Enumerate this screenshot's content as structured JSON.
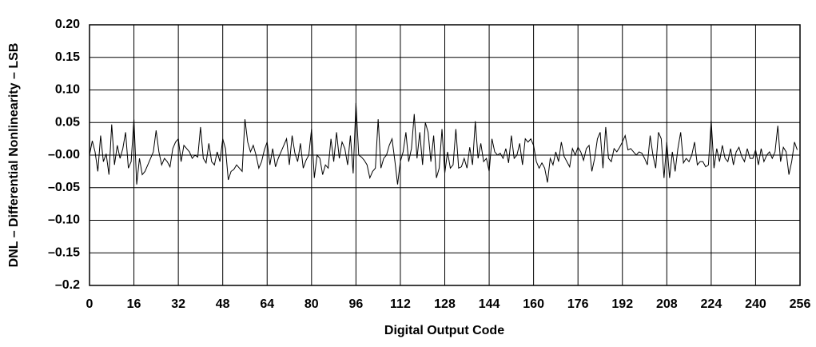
{
  "chart_data": {
    "type": "line",
    "x_label": "Digital Output Code",
    "y_label": "DNL – Differential Nonlinearity – LSB",
    "color": "#000000",
    "grid": true,
    "xlim": [
      0,
      256
    ],
    "xticks": [
      0,
      16,
      32,
      48,
      64,
      80,
      96,
      112,
      128,
      144,
      160,
      176,
      192,
      208,
      224,
      240,
      256
    ],
    "ylim": [
      -0.2,
      0.2
    ],
    "yticks": [
      {
        "value": 0.2,
        "label": "0.20"
      },
      {
        "value": 0.15,
        "label": "0.15"
      },
      {
        "value": 0.1,
        "label": "0.10"
      },
      {
        "value": 0.05,
        "label": "0.05"
      },
      {
        "value": 0,
        "label": "–0.00"
      },
      {
        "value": -0.05,
        "label": "–0.05"
      },
      {
        "value": -0.1,
        "label": "–0.10"
      },
      {
        "value": -0.15,
        "label": "–0.15"
      },
      {
        "value": -0.2,
        "label": "–0.2"
      }
    ],
    "x": [
      0,
      1,
      2,
      3,
      4,
      5,
      6,
      7,
      8,
      9,
      10,
      11,
      12,
      13,
      14,
      15,
      16,
      17,
      18,
      19,
      20,
      21,
      22,
      23,
      24,
      25,
      26,
      27,
      28,
      29,
      30,
      31,
      32,
      33,
      34,
      35,
      36,
      37,
      38,
      39,
      40,
      41,
      42,
      43,
      44,
      45,
      46,
      47,
      48,
      49,
      50,
      51,
      52,
      53,
      54,
      55,
      56,
      57,
      58,
      59,
      60,
      61,
      62,
      63,
      64,
      65,
      66,
      67,
      68,
      69,
      70,
      71,
      72,
      73,
      74,
      75,
      76,
      77,
      78,
      79,
      80,
      81,
      82,
      83,
      84,
      85,
      86,
      87,
      88,
      89,
      90,
      91,
      92,
      93,
      94,
      95,
      96,
      97,
      98,
      99,
      100,
      101,
      102,
      103,
      104,
      105,
      106,
      107,
      108,
      109,
      110,
      111,
      112,
      113,
      114,
      115,
      116,
      117,
      118,
      119,
      120,
      121,
      122,
      123,
      124,
      125,
      126,
      127,
      128,
      129,
      130,
      131,
      132,
      133,
      134,
      135,
      136,
      137,
      138,
      139,
      140,
      141,
      142,
      143,
      144,
      145,
      146,
      147,
      148,
      149,
      150,
      151,
      152,
      153,
      154,
      155,
      156,
      157,
      158,
      159,
      160,
      161,
      162,
      163,
      164,
      165,
      166,
      167,
      168,
      169,
      170,
      171,
      172,
      173,
      174,
      175,
      176,
      177,
      178,
      179,
      180,
      181,
      182,
      183,
      184,
      185,
      186,
      187,
      188,
      189,
      190,
      191,
      192,
      193,
      194,
      195,
      196,
      197,
      198,
      199,
      200,
      201,
      202,
      203,
      204,
      205,
      206,
      207,
      208,
      209,
      210,
      211,
      212,
      213,
      214,
      215,
      216,
      217,
      218,
      219,
      220,
      221,
      222,
      223,
      224,
      225,
      226,
      227,
      228,
      229,
      230,
      231,
      232,
      233,
      234,
      235,
      236,
      237,
      238,
      239,
      240,
      241,
      242,
      243,
      244,
      245,
      246,
      247,
      248,
      249,
      250,
      251,
      252,
      253,
      254,
      255
    ],
    "values": [
      0,
      0.022,
      0.005,
      -0.025,
      0.03,
      -0.01,
      0.002,
      -0.03,
      0.047,
      -0.015,
      0.015,
      -0.005,
      0.01,
      0.035,
      -0.02,
      -0.01,
      0.055,
      -0.045,
      -0.005,
      -0.03,
      -0.025,
      -0.015,
      -0.005,
      0.005,
      0.038,
      0.005,
      -0.015,
      -0.005,
      -0.01,
      -0.018,
      0.01,
      0.02,
      0.025,
      -0.01,
      0.015,
      0.01,
      0.005,
      -0.005,
      0,
      -0.003,
      0.043,
      -0.005,
      -0.012,
      0.018,
      -0.01,
      -0.015,
      0.005,
      -0.01,
      0.025,
      0.01,
      -0.038,
      -0.025,
      -0.022,
      -0.015,
      -0.02,
      -0.025,
      0.055,
      0.02,
      0.005,
      0.015,
      0,
      -0.02,
      -0.01,
      0.008,
      0.02,
      -0.015,
      0.01,
      -0.018,
      -0.005,
      0.005,
      0.015,
      0.025,
      -0.015,
      0.03,
      0.003,
      -0.01,
      0.018,
      -0.02,
      -0.008,
      0,
      0.04,
      -0.035,
      0,
      -0.005,
      -0.03,
      -0.015,
      -0.02,
      0.025,
      -0.01,
      0.035,
      -0.005,
      0.02,
      0.01,
      -0.015,
      0.03,
      -0.028,
      0.08,
      0,
      -0.003,
      -0.008,
      -0.015,
      -0.035,
      -0.025,
      -0.02,
      0.055,
      -0.02,
      -0.005,
      0,
      0.015,
      0.025,
      -0.008,
      -0.045,
      -0.01,
      0.005,
      0.035,
      -0.01,
      0.01,
      0.063,
      -0.005,
      0.035,
      -0.015,
      0.05,
      0.035,
      -0.01,
      0.03,
      -0.035,
      -0.02,
      0.04,
      -0.028,
      0.005,
      -0.02,
      -0.015,
      0.04,
      -0.02,
      -0.018,
      -0.005,
      -0.02,
      0.012,
      -0.015,
      0.052,
      -0.005,
      0.018,
      -0.01,
      -0.005,
      -0.025,
      0.025,
      0.005,
      0,
      0.003,
      -0.005,
      0.01,
      -0.012,
      0.03,
      -0.005,
      0,
      0.018,
      -0.015,
      0.025,
      0.02,
      0.025,
      0.015,
      -0.01,
      -0.02,
      -0.012,
      -0.02,
      -0.042,
      -0.005,
      -0.015,
      0.005,
      -0.01,
      0.02,
      -0.002,
      -0.01,
      -0.018,
      0.01,
      0,
      0.012,
      0.005,
      -0.008,
      0.01,
      0.015,
      -0.025,
      -0.005,
      0.025,
      0.035,
      -0.02,
      0.043,
      -0.005,
      -0.01,
      0.01,
      0.005,
      0.012,
      0.02,
      0.03,
      0.008,
      0.01,
      0.005,
      0,
      0.005,
      0.003,
      -0.005,
      -0.015,
      0.03,
      0,
      -0.02,
      0.035,
      0.025,
      -0.035,
      0.02,
      -0.035,
      0.005,
      -0.025,
      0.01,
      0.035,
      -0.012,
      -0.005,
      -0.01,
      0,
      0.02,
      -0.015,
      -0.01,
      -0.01,
      -0.018,
      -0.015,
      0.053,
      -0.02,
      0.01,
      -0.01,
      0.015,
      -0.005,
      -0.01,
      0.01,
      -0.015,
      0.005,
      0.012,
      -0.002,
      -0.01,
      0.01,
      -0.005,
      -0.005,
      0.008,
      -0.015,
      0.01,
      -0.01,
      0,
      0.005,
      -0.005,
      0.005,
      0.045,
      -0.01,
      0.012,
      0.005,
      -0.03,
      -0.01,
      0.02,
      0.008
    ]
  }
}
